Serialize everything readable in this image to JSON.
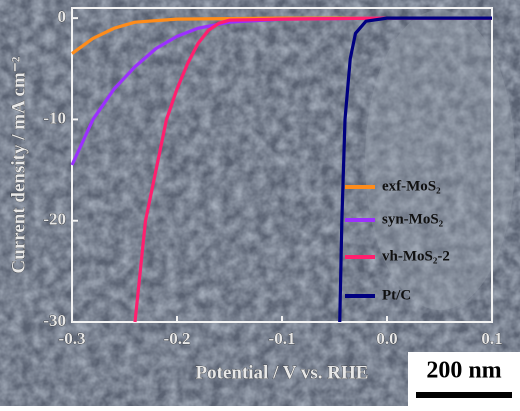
{
  "chart_data": {
    "type": "line",
    "xlabel": "Potential / V vs. RHE",
    "ylabel": "Current density / mA cm⁻²",
    "xlim": [
      -0.3,
      0.1
    ],
    "ylim": [
      -30,
      1
    ],
    "xticks": [
      -0.3,
      -0.2,
      -0.1,
      {
        "value": 0,
        "label": "0.0"
      },
      0.1
    ],
    "yticks": [
      0,
      -10,
      -20,
      -30
    ],
    "legend": "right",
    "scale_bar": "200 nm",
    "series": [
      {
        "name": "exf-MoS₂",
        "color": "#ff8c1a",
        "x": [
          -0.3,
          -0.28,
          -0.26,
          -0.24,
          -0.2,
          -0.1,
          0.1
        ],
        "values": [
          -3.5,
          -2,
          -1,
          -0.4,
          -0.1,
          0,
          0
        ]
      },
      {
        "name": "syn-MoS₂",
        "color": "#9b30ff",
        "x": [
          -0.3,
          -0.28,
          -0.26,
          -0.24,
          -0.22,
          -0.2,
          -0.18,
          -0.15,
          -0.1,
          0,
          0.1
        ],
        "values": [
          -14.5,
          -10,
          -7,
          -4.8,
          -3,
          -1.8,
          -1,
          -0.4,
          -0.1,
          0,
          0
        ]
      },
      {
        "name": "vh-MoS₂-2",
        "color": "#ff1f6e",
        "x": [
          -0.24,
          -0.235,
          -0.23,
          -0.22,
          -0.21,
          -0.2,
          -0.19,
          -0.18,
          -0.17,
          -0.16,
          -0.15,
          -0.1,
          0,
          0.1
        ],
        "values": [
          -30,
          -25,
          -20,
          -15,
          -10,
          -7,
          -4.5,
          -2.5,
          -1.2,
          -0.5,
          -0.2,
          -0.1,
          0,
          0
        ]
      },
      {
        "name": "Pt/C",
        "color": "#000080",
        "x": [
          -0.045,
          -0.043,
          -0.04,
          -0.035,
          -0.03,
          -0.02,
          0,
          0.1
        ],
        "values": [
          -30,
          -20,
          -10,
          -4,
          -1.5,
          -0.3,
          0,
          0
        ]
      }
    ]
  }
}
